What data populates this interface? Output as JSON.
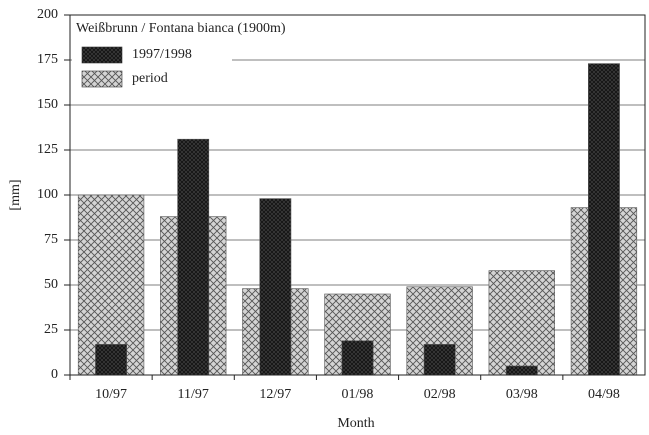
{
  "chart_data": {
    "type": "bar",
    "title": "Weißbrunn / Fontana bianca (1900m)",
    "x_label": "Month",
    "y_label": "[mm]",
    "categories": [
      "10/97",
      "11/97",
      "12/97",
      "01/98",
      "02/98",
      "03/98",
      "04/98"
    ],
    "series": [
      {
        "name": "1997/1998",
        "color": "#3a3a3a",
        "values": [
          17,
          131,
          98,
          19,
          17,
          5,
          173
        ]
      },
      {
        "name": "period",
        "color": "#d4d4d4",
        "values": [
          100,
          88,
          48,
          45,
          49,
          58,
          93
        ]
      }
    ],
    "ylim": [
      0,
      200
    ],
    "yticks": [
      0,
      25,
      50,
      75,
      100,
      125,
      150,
      175,
      200
    ],
    "grid": true
  }
}
